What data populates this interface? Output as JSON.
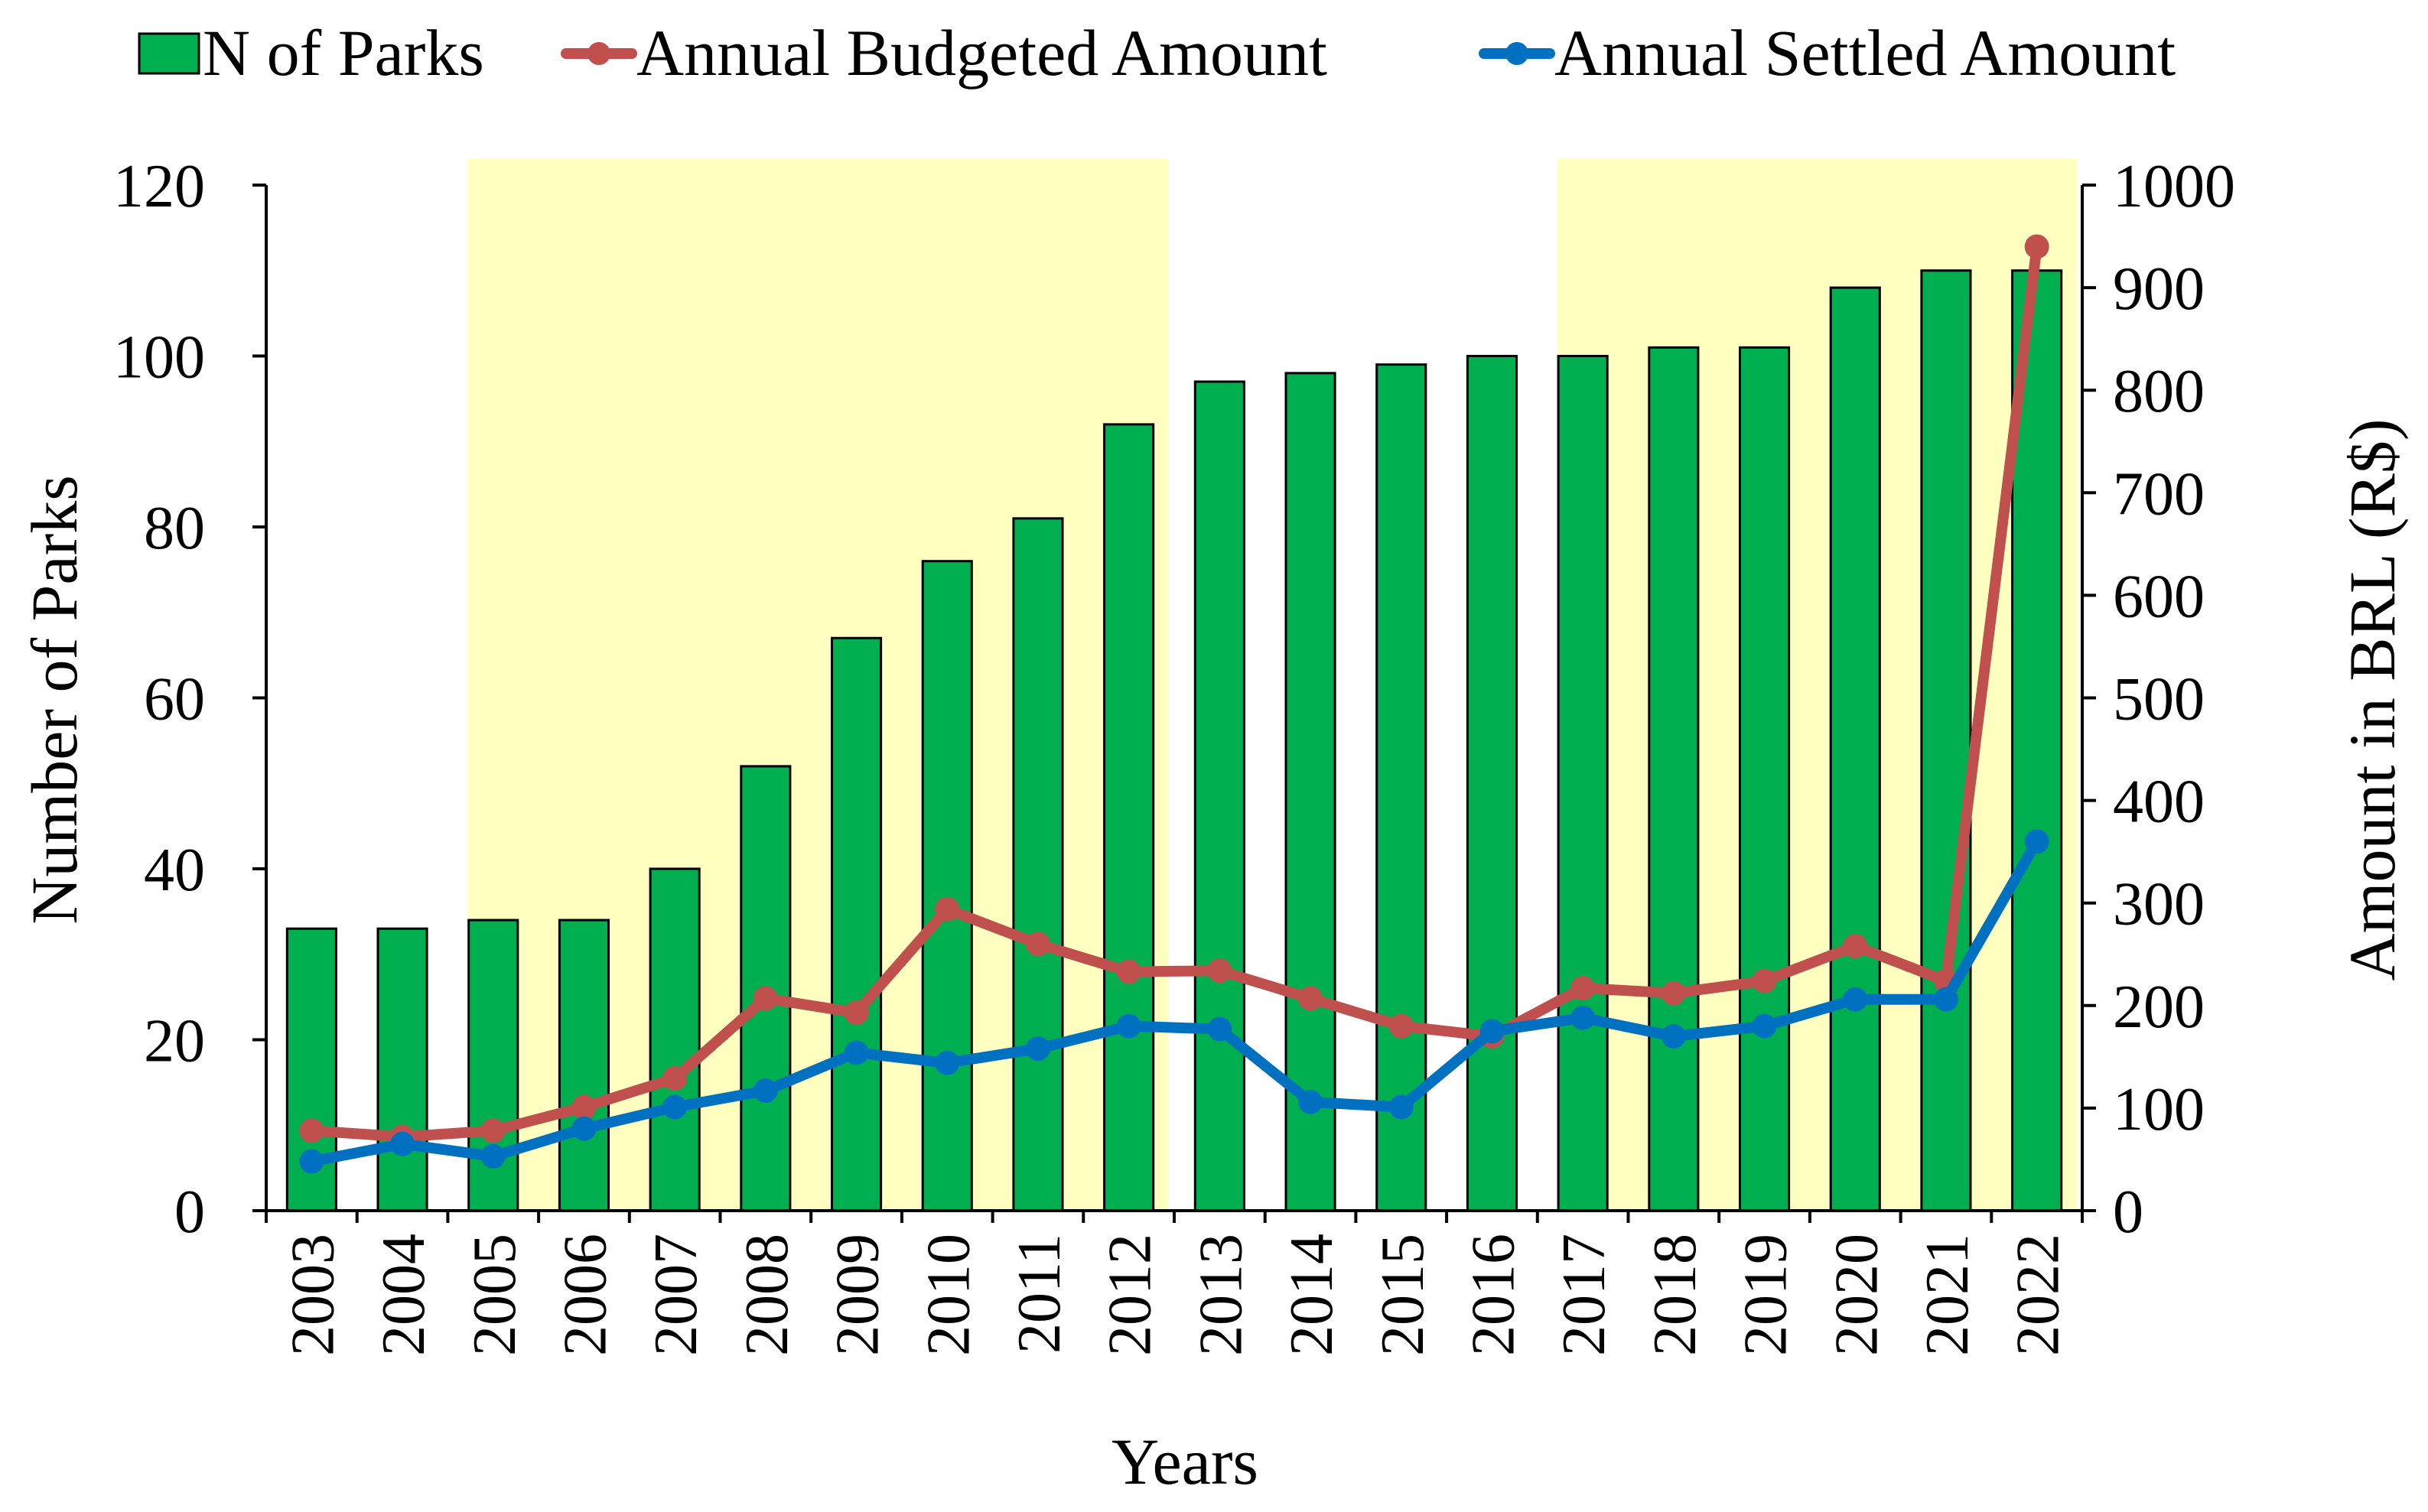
{
  "chart_data": {
    "type": "bar",
    "xlabel": "Years",
    "ylabel_left": "Number of Parks",
    "ylabel_right": "Amount in BRL (R$)",
    "ylim_left": [
      0,
      120
    ],
    "ylim_right": [
      0,
      1000
    ],
    "yticks_left": [
      0,
      20,
      40,
      60,
      80,
      100,
      120
    ],
    "yticks_right": [
      0,
      100,
      200,
      300,
      400,
      500,
      600,
      700,
      800,
      900,
      1000
    ],
    "categories": [
      "2003",
      "2004",
      "2005",
      "2006",
      "2007",
      "2008",
      "2009",
      "2010",
      "2011",
      "2012",
      "2013",
      "2014",
      "2015",
      "2016",
      "2017",
      "2018",
      "2019",
      "2020",
      "2021",
      "2022"
    ],
    "highlight_ranges": [
      [
        "2005",
        "2012"
      ],
      [
        "2017",
        "2022"
      ]
    ],
    "series": [
      {
        "name": "N of Parks",
        "kind": "bar",
        "axis": "left",
        "color": "#00B050",
        "values": [
          33,
          33,
          34,
          34,
          40,
          52,
          67,
          76,
          81,
          92,
          97,
          98,
          99,
          100,
          100,
          101,
          101,
          108,
          110,
          110
        ]
      },
      {
        "name": "Annual Budgeted Amount",
        "kind": "line",
        "axis": "right",
        "color": "#C0504D",
        "values": [
          78,
          72,
          78,
          101,
          129,
          207,
          193,
          294,
          260,
          233,
          234,
          207,
          180,
          170,
          217,
          212,
          224,
          258,
          224,
          940
        ]
      },
      {
        "name": "Annual Settled Amount",
        "kind": "line",
        "axis": "right",
        "color": "#0070C0",
        "values": [
          48,
          65,
          53,
          80,
          101,
          117,
          154,
          144,
          158,
          180,
          177,
          106,
          101,
          175,
          188,
          170,
          180,
          206,
          206,
          360
        ]
      }
    ],
    "colors": {
      "highlight": "#FFFFC0",
      "axis": "#000000"
    }
  }
}
